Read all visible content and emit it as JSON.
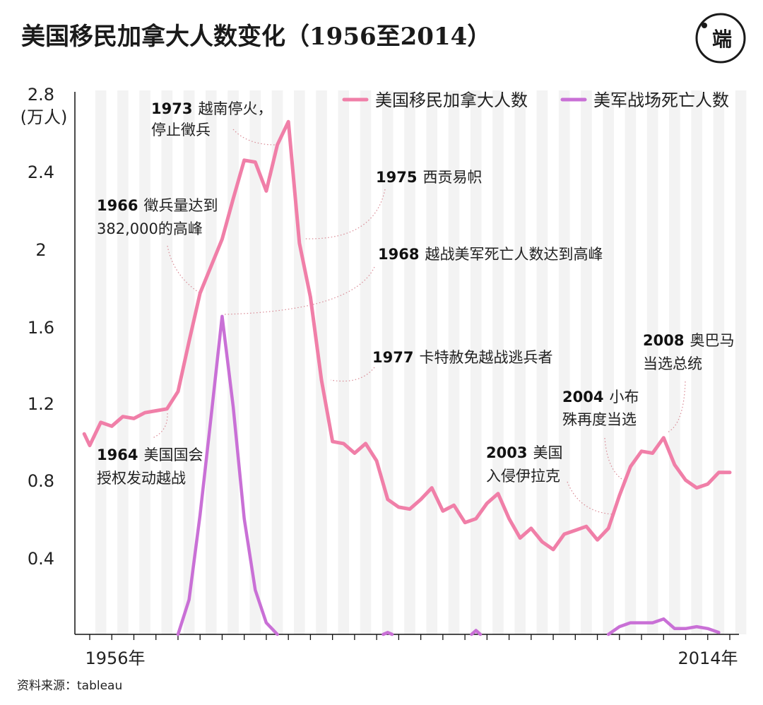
{
  "header": {
    "title": "美国移民加拿大人数变化（1956至2014）",
    "logo_text": "端"
  },
  "source": "资料来源：tableau",
  "colors": {
    "immigrants": "#f07fa8",
    "deaths": "#c970d6",
    "band": "#f3f3f3",
    "annotation_dots": "#e07a8a",
    "axis": "#111111"
  },
  "chart_data": {
    "type": "line",
    "title": "美国移民加拿大人数变化（1956至2014）",
    "ylabel": "(万人)",
    "ylim": [
      0,
      2.8
    ],
    "yticks": [
      "2.8",
      "2.4",
      "2",
      "1.6",
      "1.2",
      "0.8",
      "0.4"
    ],
    "ytick_values": [
      2.8,
      2.4,
      2.0,
      1.6,
      1.2,
      0.8,
      0.4
    ],
    "x_range": [
      1956,
      2014
    ],
    "xtick_labels": [
      {
        "year": 1956,
        "label": "1956年"
      },
      {
        "year": 2014,
        "label": "2014年"
      }
    ],
    "legend_position": "top-right",
    "series": [
      {
        "name": "美国移民加拿大人数",
        "color": "#f07fa8",
        "x": [
          1955.5,
          1956,
          1957,
          1958,
          1959,
          1960,
          1961,
          1962,
          1963,
          1964,
          1965,
          1966,
          1967,
          1968,
          1969,
          1970,
          1971,
          1972,
          1973,
          1974,
          1975,
          1976,
          1977,
          1978,
          1979,
          1980,
          1981,
          1982,
          1983,
          1984,
          1985,
          1986,
          1987,
          1988,
          1989,
          1990,
          1991,
          1992,
          1993,
          1994,
          1995,
          1996,
          1997,
          1998,
          1999,
          2000,
          2001,
          2002,
          2003,
          2004,
          2005,
          2006,
          2007,
          2008,
          2009,
          2010,
          2011,
          2012,
          2013,
          2014
        ],
        "values": [
          1.04,
          0.98,
          1.1,
          1.08,
          1.13,
          1.12,
          1.15,
          1.16,
          1.17,
          1.26,
          1.52,
          1.77,
          1.91,
          2.05,
          2.26,
          2.46,
          2.45,
          2.3,
          2.54,
          2.66,
          2.03,
          1.75,
          1.32,
          1.0,
          0.99,
          0.94,
          0.99,
          0.9,
          0.7,
          0.66,
          0.65,
          0.7,
          0.76,
          0.64,
          0.67,
          0.58,
          0.6,
          0.68,
          0.73,
          0.6,
          0.5,
          0.55,
          0.48,
          0.44,
          0.52,
          0.54,
          0.56,
          0.49,
          0.55,
          0.72,
          0.87,
          0.95,
          0.94,
          1.02,
          0.88,
          0.8,
          0.76,
          0.78,
          0.84,
          0.84
        ]
      },
      {
        "name": "美军战场死亡人数",
        "color": "#c970d6",
        "x": [
          1964,
          1965,
          1966,
          1967,
          1968,
          1969,
          1970,
          1971,
          1972,
          1973
        ],
        "values": [
          0.0,
          0.18,
          0.62,
          1.13,
          1.65,
          1.18,
          0.6,
          0.23,
          0.06,
          0.0
        ],
        "blips": [
          {
            "x": 1983,
            "values": [
              0.0,
              0.01,
              0.0
            ]
          },
          {
            "x": 1991,
            "values": [
              0.0,
              0.02,
              0.0
            ]
          }
        ],
        "x2": [
          2003,
          2004,
          2005,
          2006,
          2007,
          2008,
          2009,
          2010,
          2011,
          2012,
          2013
        ],
        "values2": [
          0.0,
          0.04,
          0.06,
          0.06,
          0.06,
          0.08,
          0.03,
          0.03,
          0.04,
          0.03,
          0.01
        ]
      }
    ],
    "annotations": [
      {
        "year": "1973",
        "text": "越南停火，",
        "line2": "停止徵兵"
      },
      {
        "year": "1975",
        "text": "西贡易帜",
        "line2": ""
      },
      {
        "year": "1966",
        "text": "徵兵量达到",
        "line2": "382,000的高峰"
      },
      {
        "year": "1968",
        "text": "越战美军死亡人数达到高峰",
        "line2": ""
      },
      {
        "year": "1977",
        "text": "卡特赦免越战逃兵者",
        "line2": ""
      },
      {
        "year": "2008",
        "text": "奥巴马",
        "line2": "当选总统"
      },
      {
        "year": "2004",
        "text": "小布",
        "line2": "殊再度当选"
      },
      {
        "year": "2003",
        "text": "美国",
        "line2": "入侵伊拉克"
      },
      {
        "year": "1964",
        "text": "美国国会",
        "line2": "授权发动越战"
      }
    ]
  }
}
